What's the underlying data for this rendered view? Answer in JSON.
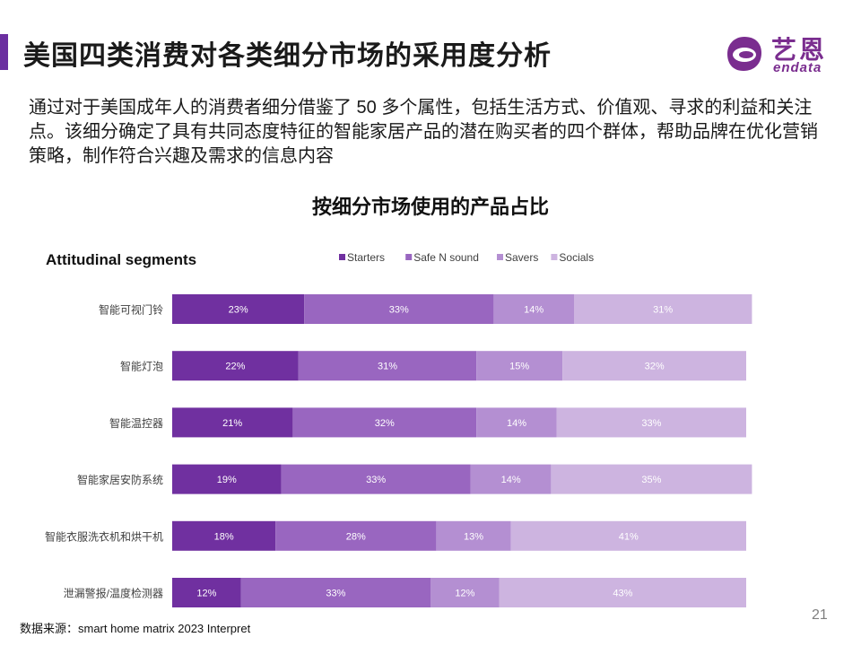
{
  "header": {
    "title": "美国四类消费对各类细分市场的采用度分析",
    "logo_cn": "艺恩",
    "logo_en": "endata",
    "accent_color": "#6b2fa0"
  },
  "intro_text": "通过对于美国成年人的消费者细分借鉴了 50 多个属性，包括生活方式、价值观、寻求的利益和关注点。该细分确定了具有共同态度特征的智能家居产品的潜在购买者的四个群体，帮助品牌在优化营销策略，制作符合兴趣及需求的信息内容",
  "chart_title": "按细分市场使用的产品占比",
  "chart_data": {
    "type": "bar",
    "orientation": "horizontal",
    "stacked": true,
    "legend_title": "Attitudinal segments",
    "legend_position": "top",
    "categories": [
      "智能可视门铃",
      "智能灯泡",
      "智能温控器",
      "智能家居安防系统",
      "智能衣服洗衣机和烘干机",
      "泄漏警报/温度检测器"
    ],
    "series": [
      {
        "name": "Starters",
        "color": "#7030a0",
        "values": [
          23,
          22,
          21,
          19,
          18,
          12
        ]
      },
      {
        "name": "Safe N sound",
        "color": "#9966c0",
        "values": [
          33,
          31,
          32,
          33,
          28,
          33
        ]
      },
      {
        "name": "Savers",
        "color": "#b48fd2",
        "values": [
          14,
          15,
          14,
          14,
          13,
          12
        ]
      },
      {
        "name": "Socials",
        "color": "#cdb4e0",
        "values": [
          31,
          32,
          33,
          35,
          41,
          43
        ]
      }
    ],
    "value_suffix": "%",
    "grid": false
  },
  "source_text": "数据来源：smart home matrix 2023 Interpret",
  "page_number": "21"
}
